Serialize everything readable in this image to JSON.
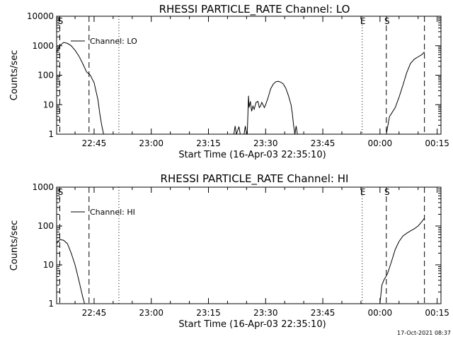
{
  "chart_data": [
    {
      "type": "line",
      "title": "RHESSI PARTICLE_RATE Channel: LO",
      "xlabel": "Start Time (16-Apr-03 22:35:10)",
      "ylabel": "Counts/sec",
      "y_scale": "log",
      "ylim": [
        1,
        10000
      ],
      "ytick_labels": [
        "1",
        "10",
        "100",
        "1000",
        "10000"
      ],
      "xlim": [
        "22:35:10",
        "00:16:00"
      ],
      "xtick_labels": [
        "22:45",
        "23:00",
        "23:15",
        "23:30",
        "23:45",
        "00:00",
        "00:15"
      ],
      "grid": false,
      "legend": {
        "position": "top-left",
        "entries": [
          "Channel: LO"
        ]
      },
      "markers": [
        {
          "label": "S",
          "time": "22:36:00",
          "style": "dashed"
        },
        {
          "label": "",
          "time": "22:43:40",
          "style": "dashed"
        },
        {
          "label": "",
          "time": "22:51:30",
          "style": "dotted"
        },
        {
          "label": "E",
          "time": "23:55:20",
          "style": "dotted"
        },
        {
          "label": "S",
          "time": "00:01:40",
          "style": "dashed"
        },
        {
          "label": "",
          "time": "00:11:40",
          "style": "dashed"
        }
      ],
      "series": [
        {
          "name": "Channel: LO",
          "segments": [
            [
              [
                "22:35:10",
                600
              ],
              [
                "22:36:00",
                1000
              ],
              [
                "22:37:00",
                1300
              ],
              [
                "22:38:00",
                1200
              ],
              [
                "22:39:00",
                1000
              ],
              [
                "22:40:00",
                700
              ],
              [
                "22:41:00",
                450
              ],
              [
                "22:42:00",
                250
              ],
              [
                "22:43:00",
                130
              ],
              [
                "22:44:00",
                100
              ],
              [
                "22:45:00",
                55
              ],
              [
                "22:46:00",
                15
              ],
              [
                "22:46:30",
                5
              ],
              [
                "22:47:00",
                2
              ],
              [
                "22:47:30",
                1
              ]
            ],
            [
              [
                "23:21:40",
                1
              ],
              [
                "23:22:00",
                1.9
              ],
              [
                "23:22:20",
                1
              ],
              [
                "23:23:00",
                1.8
              ],
              [
                "23:23:20",
                1
              ],
              [
                "23:24:20",
                1
              ],
              [
                "23:24:40",
                1.9
              ],
              [
                "23:25:00",
                1
              ]
            ],
            [
              [
                "23:25:10",
                1
              ],
              [
                "23:25:30",
                20
              ],
              [
                "23:25:40",
                8
              ],
              [
                "23:26:00",
                13
              ],
              [
                "23:26:20",
                6
              ],
              [
                "23:26:40",
                9
              ],
              [
                "23:27:00",
                7
              ],
              [
                "23:27:30",
                12
              ],
              [
                "23:28:00",
                13
              ],
              [
                "23:28:20",
                8
              ],
              [
                "23:28:40",
                9
              ],
              [
                "23:29:00",
                12
              ],
              [
                "23:29:40",
                8
              ],
              [
                "23:30:00",
                10
              ],
              [
                "23:30:40",
                18
              ],
              [
                "23:31:20",
                35
              ],
              [
                "23:32:00",
                50
              ],
              [
                "23:32:40",
                60
              ],
              [
                "23:33:20",
                62
              ],
              [
                "23:34:00",
                58
              ],
              [
                "23:34:40",
                50
              ],
              [
                "23:35:20",
                35
              ],
              [
                "23:36:00",
                20
              ],
              [
                "23:36:40",
                10
              ],
              [
                "23:37:00",
                5
              ],
              [
                "23:37:20",
                2
              ],
              [
                "23:37:40",
                1
              ],
              [
                "23:38:00",
                1.9
              ],
              [
                "23:38:20",
                1
              ]
            ],
            [
              [
                "00:01:40",
                1
              ],
              [
                "00:02:30",
                4
              ],
              [
                "00:03:00",
                5
              ],
              [
                "00:04:00",
                8
              ],
              [
                "00:05:00",
                18
              ],
              [
                "00:06:00",
                45
              ],
              [
                "00:07:00",
                120
              ],
              [
                "00:08:00",
                250
              ],
              [
                "00:09:00",
                350
              ],
              [
                "00:10:00",
                420
              ],
              [
                "00:11:00",
                500
              ],
              [
                "00:11:40",
                620
              ]
            ]
          ]
        }
      ]
    },
    {
      "type": "line",
      "title": "RHESSI PARTICLE_RATE Channel: HI",
      "xlabel": "Start Time (16-Apr-03 22:35:10)",
      "ylabel": "Counts/sec",
      "y_scale": "log",
      "ylim": [
        1,
        1000
      ],
      "ytick_labels": [
        "1",
        "10",
        "100",
        "1000"
      ],
      "xlim": [
        "22:35:10",
        "00:16:00"
      ],
      "xtick_labels": [
        "22:45",
        "23:00",
        "23:15",
        "23:30",
        "23:45",
        "00:00",
        "00:15"
      ],
      "grid": false,
      "legend": {
        "position": "top-left",
        "entries": [
          "Channel: HI"
        ]
      },
      "markers": [
        {
          "label": "S",
          "time": "22:36:00",
          "style": "dashed"
        },
        {
          "label": "",
          "time": "22:43:40",
          "style": "dashed"
        },
        {
          "label": "",
          "time": "22:51:30",
          "style": "dotted"
        },
        {
          "label": "E",
          "time": "23:55:20",
          "style": "dotted"
        },
        {
          "label": "S",
          "time": "00:01:40",
          "style": "dashed"
        },
        {
          "label": "",
          "time": "00:11:40",
          "style": "dashed"
        }
      ],
      "series": [
        {
          "name": "Channel: HI",
          "segments": [
            [
              [
                "22:35:10",
                35
              ],
              [
                "22:36:00",
                45
              ],
              [
                "22:37:00",
                43
              ],
              [
                "22:38:00",
                35
              ],
              [
                "22:39:00",
                20
              ],
              [
                "22:40:00",
                10
              ],
              [
                "22:41:00",
                4
              ],
              [
                "22:42:00",
                1.5
              ],
              [
                "22:42:30",
                1
              ]
            ],
            [
              [
                "00:00:00",
                1
              ],
              [
                "00:00:30",
                3
              ],
              [
                "00:01:00",
                4
              ],
              [
                "00:02:00",
                6
              ],
              [
                "00:03:00",
                12
              ],
              [
                "00:04:00",
                25
              ],
              [
                "00:05:00",
                40
              ],
              [
                "00:06:00",
                55
              ],
              [
                "00:07:00",
                65
              ],
              [
                "00:08:00",
                75
              ],
              [
                "00:09:00",
                85
              ],
              [
                "00:10:00",
                100
              ],
              [
                "00:11:00",
                130
              ],
              [
                "00:11:40",
                160
              ]
            ]
          ]
        }
      ]
    }
  ],
  "footer": {
    "timestamp": "17-Oct-2021 08:37"
  }
}
